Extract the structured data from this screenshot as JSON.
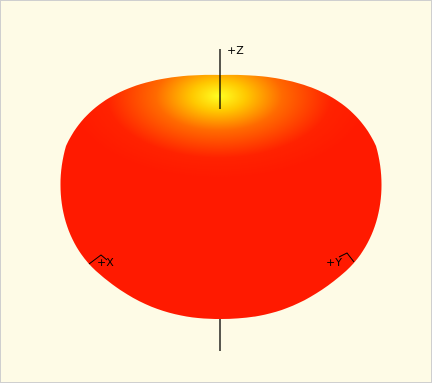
{
  "viewer": {
    "background_color": "#fefbe6",
    "shape_edge_color": "#ff1500",
    "shape_hot_color": "#ffff20",
    "axis_color": "#000000",
    "axes": {
      "z_label": "+Z",
      "x_label": "+X",
      "y_label": "+Y"
    }
  }
}
